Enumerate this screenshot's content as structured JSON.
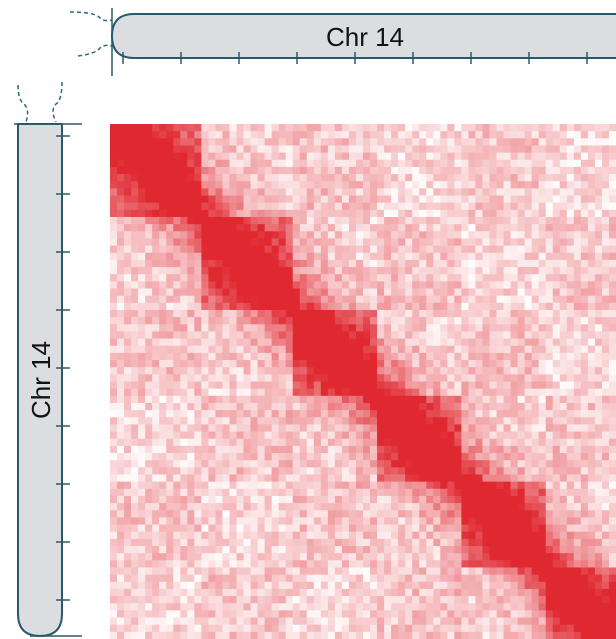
{
  "top_axis": {
    "label": "Chr 14"
  },
  "left_axis": {
    "label": "Chr 14"
  }
}
